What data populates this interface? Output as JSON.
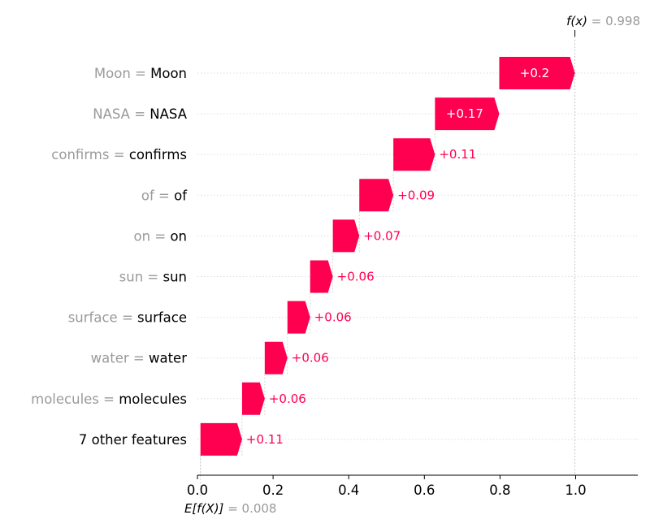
{
  "chart_data": {
    "type": "waterfall",
    "fx_label": "f(x)",
    "fx_value": "0.998",
    "ex_label": "E[f(X)]",
    "ex_value": "0.008",
    "base": 0.008,
    "xlim": [
      0.0,
      1.16
    ],
    "xticks": [
      "0.0",
      "0.2",
      "0.4",
      "0.6",
      "0.8",
      "1.0"
    ],
    "features": [
      {
        "name": "Moon",
        "value": "Moon",
        "contribution": 0.2,
        "label": "+0.2"
      },
      {
        "name": "NASA ",
        "value": "NASA",
        "contribution": 0.17,
        "label": "+0.17"
      },
      {
        "name": "confirms ",
        "value": "confirms",
        "contribution": 0.11,
        "label": "+0.11"
      },
      {
        "name": "of ",
        "value": "of",
        "contribution": 0.09,
        "label": "+0.09"
      },
      {
        "name": "on ",
        "value": "on",
        "contribution": 0.07,
        "label": "+0.07"
      },
      {
        "name": "sun",
        "value": "sun",
        "contribution": 0.06,
        "label": "+0.06"
      },
      {
        "name": "surface ",
        "value": "surface",
        "contribution": 0.06,
        "label": "+0.06"
      },
      {
        "name": "water ",
        "value": "water",
        "contribution": 0.06,
        "label": "+0.06"
      },
      {
        "name": "molecules ",
        "value": "molecules",
        "contribution": 0.06,
        "label": "+0.06"
      }
    ],
    "other": {
      "label": "7 other features",
      "contribution": 0.11,
      "text": "+0.11"
    },
    "colors": {
      "positive": "#ff0051",
      "axis": "#000000",
      "grid": "#dddddd",
      "muted": "#999999"
    }
  }
}
